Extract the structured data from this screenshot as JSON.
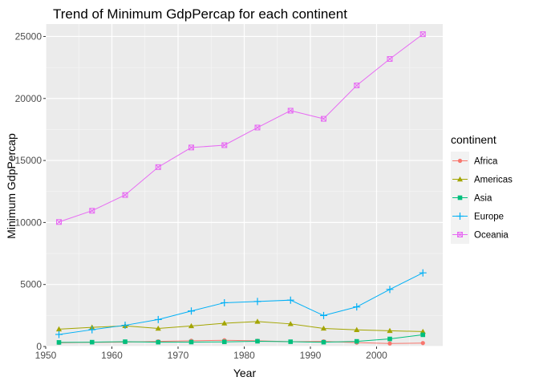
{
  "chart_data": {
    "type": "line",
    "title": "Trend of Minimum GdpPercap for each continent",
    "xlabel": "Year",
    "ylabel": "Minimum GdpPercap",
    "xlim": [
      1950,
      2010
    ],
    "ylim": [
      0,
      26000
    ],
    "x_ticks": [
      1950,
      1960,
      1970,
      1980,
      1990,
      2000
    ],
    "y_ticks": [
      0,
      5000,
      10000,
      15000,
      20000,
      25000
    ],
    "grid": true,
    "legend": {
      "title": "continent",
      "placement": "right"
    },
    "x": [
      1952,
      1957,
      1962,
      1967,
      1972,
      1977,
      1982,
      1987,
      1992,
      1997,
      2002,
      2007
    ],
    "series": [
      {
        "name": "Africa",
        "color": "#F8766D",
        "shape": "circle",
        "values": [
          298,
          336,
          355,
          413,
          464,
          502,
          462,
          390,
          411,
          312,
          241,
          277
        ]
      },
      {
        "name": "Americas",
        "color": "#A3A500",
        "shape": "triangle",
        "values": [
          1398,
          1544,
          1663,
          1453,
          1654,
          1874,
          2011,
          1823,
          1457,
          1342,
          1270,
          1202
        ]
      },
      {
        "name": "Asia",
        "color": "#00BF7D",
        "shape": "square",
        "values": [
          331,
          350,
          388,
          349,
          357,
          371,
          424,
          385,
          347,
          415,
          611,
          944
        ]
      },
      {
        "name": "Europe",
        "color": "#00B0F6",
        "shape": "plus",
        "values": [
          973,
          1354,
          1710,
          2172,
          2860,
          3528,
          3631,
          3739,
          2497,
          3193,
          4604,
          5937
        ]
      },
      {
        "name": "Oceania",
        "color": "#E76BF3",
        "shape": "square-x",
        "values": [
          10040,
          10950,
          12217,
          14464,
          16046,
          16234,
          17656,
          19018,
          18364,
          21050,
          23189,
          25185
        ]
      }
    ]
  }
}
